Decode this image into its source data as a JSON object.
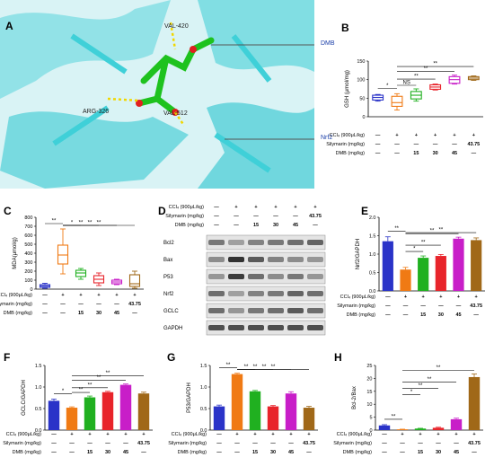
{
  "figure": {
    "panel_labels": [
      "A",
      "B",
      "C",
      "D",
      "E",
      "F",
      "G",
      "H"
    ],
    "molecule": {
      "labels": [
        "VAL-420",
        "ARG-326",
        "VAL-512"
      ],
      "callouts": [
        "DMB",
        "Nrf2"
      ],
      "colors": {
        "protein": "#3fd0d8",
        "ligand": "#1ec21e",
        "oxygen": "#e02020",
        "hbond": "#f1d700",
        "background": "#d9f3f5"
      }
    },
    "treatment_rows": {
      "labels": [
        "CCl₄ (900μL/kg)",
        "Silymarin (mg/kg)",
        "DMB (mg/kg)"
      ],
      "values": [
        [
          "—",
          "+",
          "+",
          "+",
          "+",
          "+"
        ],
        [
          "—",
          "—",
          "—",
          "—",
          "—",
          "43.75"
        ],
        [
          "—",
          "—",
          "15",
          "30",
          "45",
          "—"
        ]
      ]
    },
    "group_colors": [
      "#2a33c8",
      "#f07a14",
      "#20b020",
      "#e8242b",
      "#c81ec8",
      "#a06818"
    ],
    "western_blot": {
      "proteins": [
        "Bcl2",
        "Bax",
        "P53",
        "Nrf2",
        "GCLC",
        "GAPDH"
      ]
    }
  },
  "chart_data": [
    {
      "id": "B",
      "type": "box",
      "ylabel": "GSH (μmol/mg)",
      "ylim": [
        0,
        150
      ],
      "yticks": [
        0,
        50,
        100,
        150
      ],
      "series": [
        {
          "q1": 45,
          "med": 52,
          "q3": 58,
          "min": 42,
          "max": 60
        },
        {
          "q1": 28,
          "med": 38,
          "q3": 55,
          "min": 18,
          "max": 62
        },
        {
          "q1": 48,
          "med": 58,
          "q3": 68,
          "min": 42,
          "max": 75
        },
        {
          "q1": 74,
          "med": 80,
          "q3": 86,
          "min": 72,
          "max": 88
        },
        {
          "q1": 90,
          "med": 100,
          "q3": 108,
          "min": 88,
          "max": 112
        },
        {
          "q1": 100,
          "med": 104,
          "q3": 108,
          "min": 98,
          "max": 110
        }
      ],
      "sig": [
        {
          "a": 0,
          "b": 1,
          "t": "*"
        },
        {
          "a": 1,
          "b": 2,
          "t": "NS"
        },
        {
          "a": 1,
          "b": 3,
          "t": "**"
        },
        {
          "a": 1,
          "b": 4,
          "t": "**"
        },
        {
          "a": 1,
          "b": 5,
          "t": "**"
        }
      ]
    },
    {
      "id": "C",
      "type": "box",
      "ylabel": "MDA(μmol/g)",
      "ylim": [
        0,
        800
      ],
      "yticks": [
        0,
        100,
        200,
        300,
        400,
        500,
        600,
        700,
        800
      ],
      "series": [
        {
          "q1": 20,
          "med": 35,
          "q3": 50,
          "min": 10,
          "max": 65
        },
        {
          "q1": 280,
          "med": 380,
          "q3": 490,
          "min": 170,
          "max": 670
        },
        {
          "q1": 140,
          "med": 180,
          "q3": 210,
          "min": 110,
          "max": 230
        },
        {
          "q1": 70,
          "med": 110,
          "q3": 150,
          "min": 40,
          "max": 180
        },
        {
          "q1": 60,
          "med": 80,
          "q3": 100,
          "min": 50,
          "max": 110
        },
        {
          "q1": 30,
          "med": 60,
          "q3": 160,
          "min": 10,
          "max": 200
        }
      ],
      "sig": [
        {
          "a": 0,
          "b": 1,
          "t": "**"
        },
        {
          "a": 1,
          "b": 2,
          "t": "*"
        },
        {
          "a": 1,
          "b": 3,
          "t": "**"
        },
        {
          "a": 1,
          "b": 4,
          "t": "**"
        },
        {
          "a": 1,
          "b": 5,
          "t": "**"
        }
      ]
    },
    {
      "id": "E",
      "type": "bar",
      "ylabel": "Nrf2/GAPDH",
      "ylim": [
        0,
        2.0
      ],
      "yticks": [
        0.0,
        0.5,
        1.0,
        1.5,
        2.0
      ],
      "values": [
        1.35,
        0.58,
        0.9,
        0.95,
        1.42,
        1.38
      ],
      "err": [
        0.12,
        0.06,
        0.05,
        0.04,
        0.04,
        0.06
      ],
      "sig": [
        {
          "a": 0,
          "b": 1,
          "t": "**"
        },
        {
          "a": 1,
          "b": 2,
          "t": "*"
        },
        {
          "a": 1,
          "b": 3,
          "t": "**"
        },
        {
          "a": 1,
          "b": 4,
          "t": "**"
        },
        {
          "a": 1,
          "b": 5,
          "t": "**"
        }
      ]
    },
    {
      "id": "F",
      "type": "bar",
      "ylabel": "GCLC/GAPDH",
      "ylim": [
        0,
        1.5
      ],
      "yticks": [
        0.0,
        0.5,
        1.0,
        1.5
      ],
      "values": [
        0.68,
        0.52,
        0.76,
        0.88,
        1.05,
        0.85
      ],
      "err": [
        0.04,
        0.02,
        0.03,
        0.02,
        0.02,
        0.03
      ],
      "sig": [
        {
          "a": 0,
          "b": 1,
          "t": "*"
        },
        {
          "a": 1,
          "b": 2,
          "t": "**"
        },
        {
          "a": 1,
          "b": 3,
          "t": "**"
        },
        {
          "a": 1,
          "b": 4,
          "t": "**"
        },
        {
          "a": 1,
          "b": 5,
          "t": "**"
        }
      ]
    },
    {
      "id": "G",
      "type": "bar",
      "ylabel": "P53/GAPDH",
      "ylim": [
        0,
        1.5
      ],
      "yticks": [
        0.0,
        0.5,
        1.0,
        1.5
      ],
      "values": [
        0.55,
        1.3,
        0.9,
        0.55,
        0.85,
        0.52
      ],
      "err": [
        0.03,
        0.02,
        0.02,
        0.02,
        0.04,
        0.03
      ],
      "sig": [
        {
          "a": 0,
          "b": 1,
          "t": "**"
        },
        {
          "a": 1,
          "b": 2,
          "t": "**"
        },
        {
          "a": 1,
          "b": 3,
          "t": "**"
        },
        {
          "a": 1,
          "b": 4,
          "t": "**"
        },
        {
          "a": 1,
          "b": 5,
          "t": "**"
        }
      ]
    },
    {
      "id": "H",
      "type": "bar",
      "ylabel": "Bcl-2/Bax",
      "ylim": [
        0,
        25
      ],
      "yticks": [
        0,
        5,
        10,
        15,
        20,
        25
      ],
      "values": [
        1.8,
        0.3,
        0.6,
        0.9,
        4.2,
        20.5
      ],
      "err": [
        0.3,
        0.05,
        0.1,
        0.2,
        0.4,
        1.2
      ],
      "sig": [
        {
          "a": 0,
          "b": 1,
          "t": "**"
        },
        {
          "a": 1,
          "b": 2,
          "t": "*"
        },
        {
          "a": 1,
          "b": 3,
          "t": "**"
        },
        {
          "a": 1,
          "b": 4,
          "t": "**"
        },
        {
          "a": 1,
          "b": 5,
          "t": "**"
        }
      ]
    }
  ]
}
